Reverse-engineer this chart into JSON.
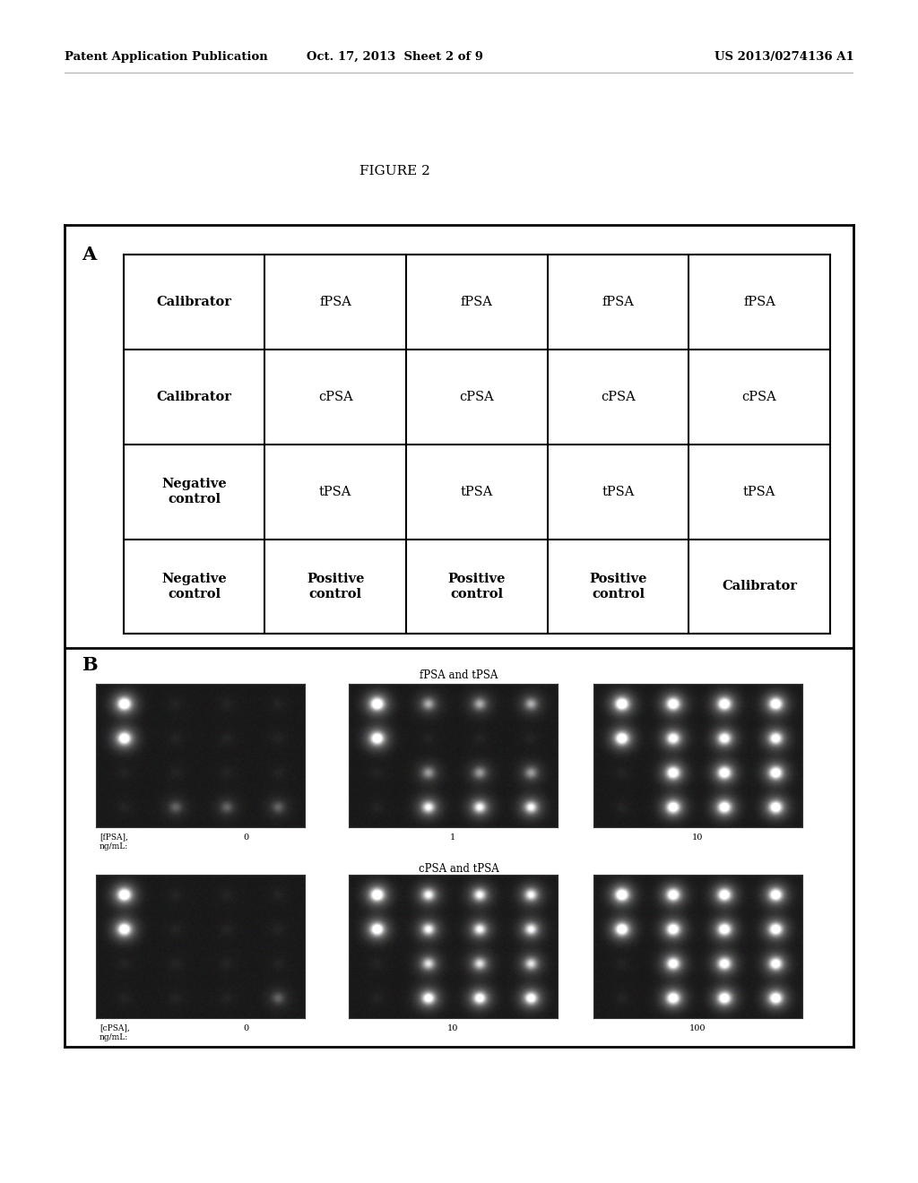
{
  "header_left": "Patent Application Publication",
  "header_mid": "Oct. 17, 2013  Sheet 2 of 9",
  "header_right": "US 2013/0274136 A1",
  "figure_label": "FIGURE 2",
  "section_A_label": "A",
  "section_B_label": "B",
  "table_rows": [
    [
      "Calibrator",
      "fPSA",
      "fPSA",
      "fPSA",
      "fPSA"
    ],
    [
      "Calibrator",
      "cPSA",
      "cPSA",
      "cPSA",
      "cPSA"
    ],
    [
      "Negative\ncontrol",
      "tPSA",
      "tPSA",
      "tPSA",
      "tPSA"
    ],
    [
      "Negative\ncontrol",
      "Positive\ncontrol",
      "Positive\ncontrol",
      "Positive\ncontrol",
      "Calibrator"
    ]
  ],
  "fpsa_title": "fPSA and tPSA",
  "cpsa_title": "cPSA and tPSA",
  "fpsa_conc_label": "[fPSA],\nng/mL:",
  "fpsa_conc_vals": [
    "0",
    "1",
    "10"
  ],
  "cpsa_conc_label": "[cPSA],\nng/mL:",
  "cpsa_conc_vals": [
    "0",
    "10",
    "100"
  ],
  "background_color": "#ffffff",
  "border_color": "#000000",
  "text_color": "#000000",
  "fpsa_dot_patterns": [
    [
      [
        0.95,
        0.03,
        0.03,
        0.03
      ],
      [
        0.9,
        0.03,
        0.03,
        0.03
      ],
      [
        0.03,
        0.03,
        0.03,
        0.03
      ],
      [
        0.03,
        0.2,
        0.2,
        0.2
      ]
    ],
    [
      [
        0.95,
        0.4,
        0.4,
        0.4
      ],
      [
        0.9,
        0.03,
        0.03,
        0.03
      ],
      [
        0.03,
        0.35,
        0.35,
        0.35
      ],
      [
        0.03,
        0.65,
        0.65,
        0.65
      ]
    ],
    [
      [
        0.95,
        0.9,
        0.9,
        0.9
      ],
      [
        0.9,
        0.8,
        0.8,
        0.8
      ],
      [
        0.03,
        0.88,
        0.88,
        0.88
      ],
      [
        0.03,
        0.88,
        0.88,
        0.88
      ]
    ]
  ],
  "cpsa_dot_patterns": [
    [
      [
        0.95,
        0.03,
        0.03,
        0.03
      ],
      [
        0.9,
        0.03,
        0.03,
        0.03
      ],
      [
        0.03,
        0.03,
        0.03,
        0.03
      ],
      [
        0.03,
        0.03,
        0.03,
        0.2
      ]
    ],
    [
      [
        0.95,
        0.65,
        0.65,
        0.65
      ],
      [
        0.9,
        0.65,
        0.65,
        0.65
      ],
      [
        0.03,
        0.55,
        0.55,
        0.55
      ],
      [
        0.03,
        0.78,
        0.78,
        0.78
      ]
    ],
    [
      [
        0.95,
        0.88,
        0.88,
        0.88
      ],
      [
        0.9,
        0.88,
        0.88,
        0.88
      ],
      [
        0.03,
        0.82,
        0.82,
        0.82
      ],
      [
        0.03,
        0.88,
        0.88,
        0.88
      ]
    ]
  ]
}
